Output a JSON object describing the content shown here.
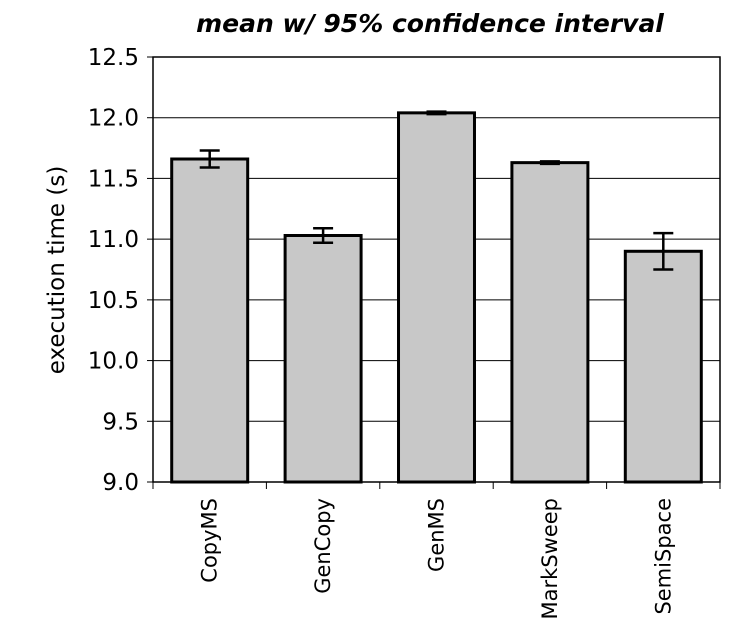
{
  "chart_data": {
    "type": "bar",
    "title": "mean w/ 95% confidence interval",
    "xlabel": "",
    "ylabel": "execution time (s)",
    "ylim": [
      9.0,
      12.5
    ],
    "yticks": [
      "9.0",
      "9.5",
      "10.0",
      "10.5",
      "11.0",
      "11.5",
      "12.0",
      "12.5"
    ],
    "categories": [
      "CopyMS",
      "GenCopy",
      "GenMS",
      "MarkSweep",
      "SemiSpace"
    ],
    "values": [
      11.66,
      11.03,
      12.04,
      11.63,
      10.9
    ],
    "error_low": [
      11.59,
      10.97,
      12.03,
      11.62,
      10.75
    ],
    "error_high": [
      11.73,
      11.09,
      12.05,
      11.64,
      11.05
    ],
    "grid": true,
    "colors": {
      "bar_fill": "#c8c8c8",
      "bar_stroke": "#000000",
      "grid": "#000000"
    }
  }
}
